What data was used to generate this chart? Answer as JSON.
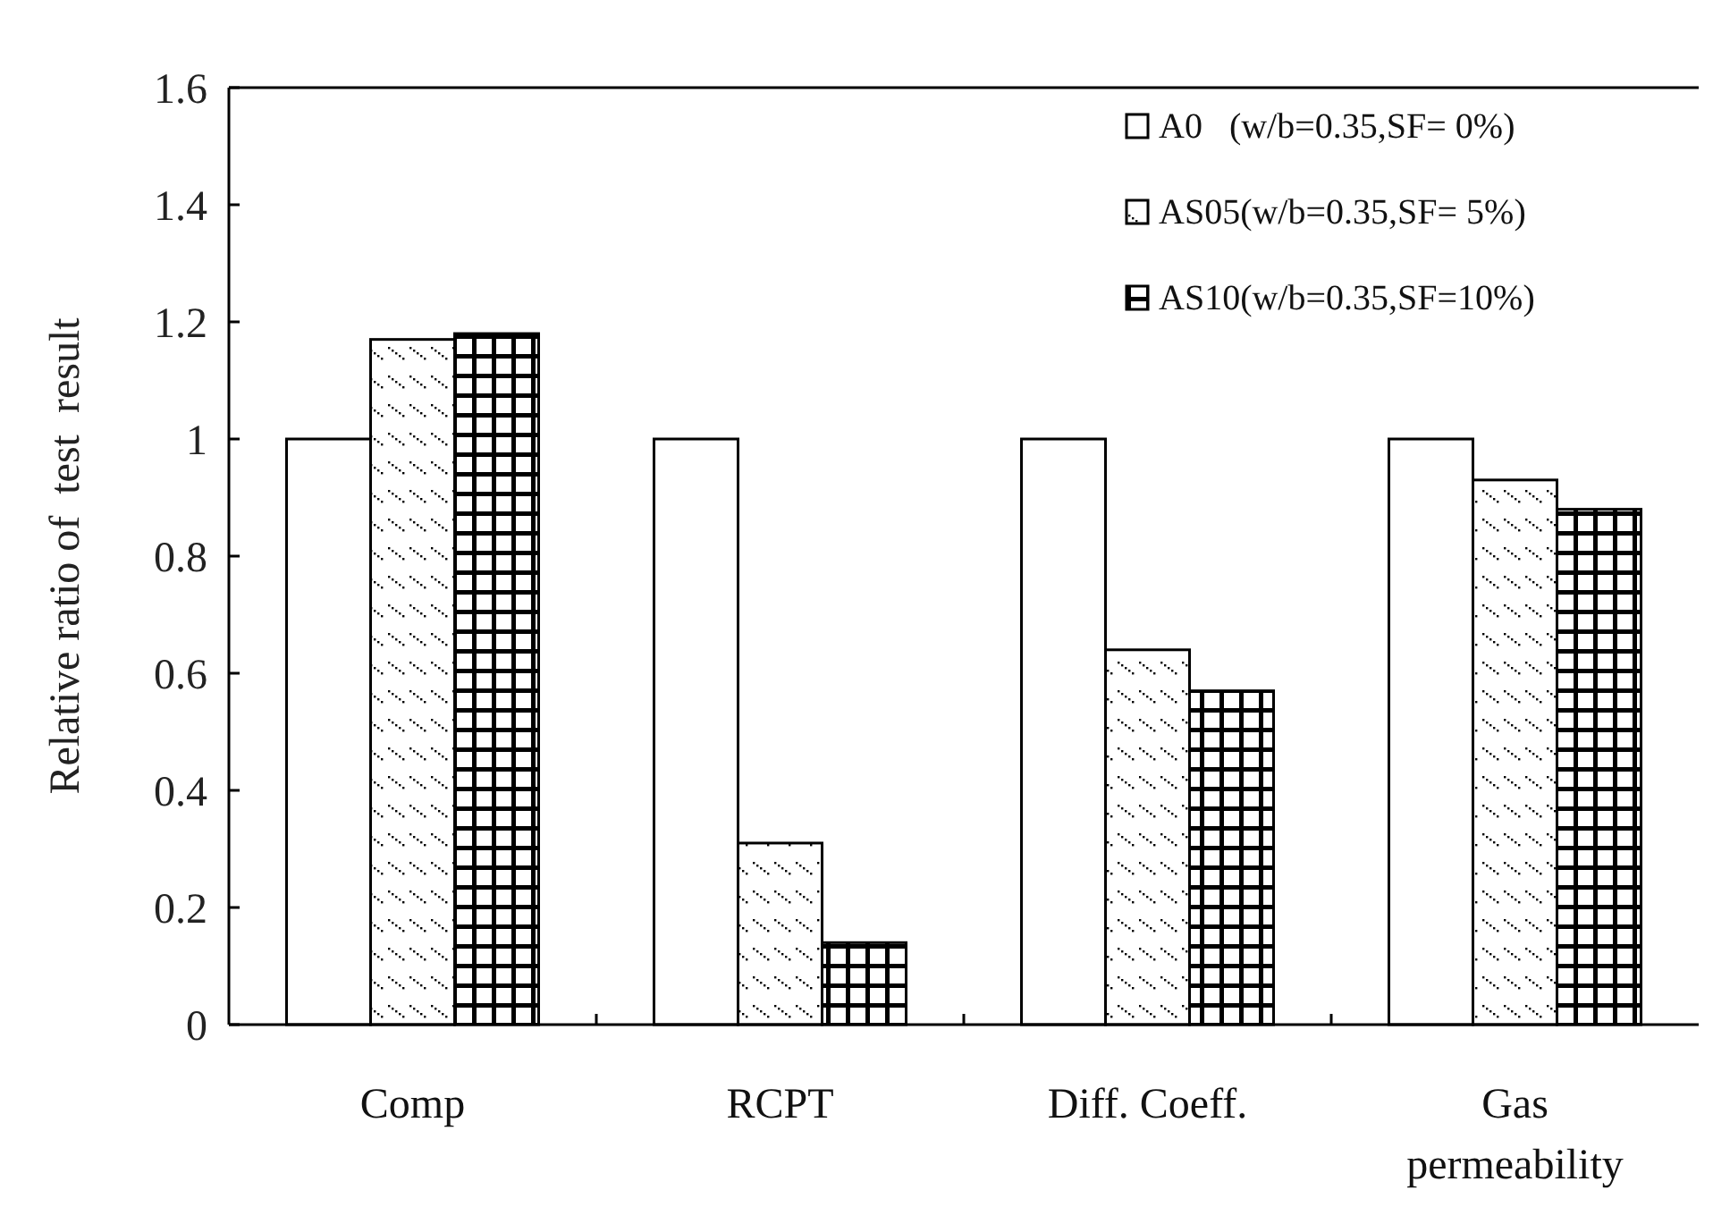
{
  "chart_data": {
    "type": "bar",
    "ylabel": "Relative ratio of  test  result",
    "categories": [
      "Comp",
      "RCPT",
      "Diff. Coeff.",
      "Gas\npermeability"
    ],
    "series": [
      {
        "name": "A0   (w/b=0.35,SF= 0%)",
        "color": "#ffffff",
        "values": [
          1,
          1,
          1,
          1
        ]
      },
      {
        "name": "AS05(w/b=0.35,SF= 5%)",
        "color": "#000000",
        "values": [
          1.17,
          0.31,
          0.64,
          0.93
        ]
      },
      {
        "name": "AS10(w/b=0.35,SF=10%)",
        "color": "#000000",
        "values": [
          1.18,
          0.14,
          0.57,
          0.88
        ]
      }
    ],
    "ylim": [
      0,
      1.6
    ],
    "yticks": [
      0,
      0.2,
      0.4,
      0.6,
      0.8,
      1,
      1.2,
      1.4,
      1.6
    ],
    "legend": "top right",
    "grid": false
  }
}
